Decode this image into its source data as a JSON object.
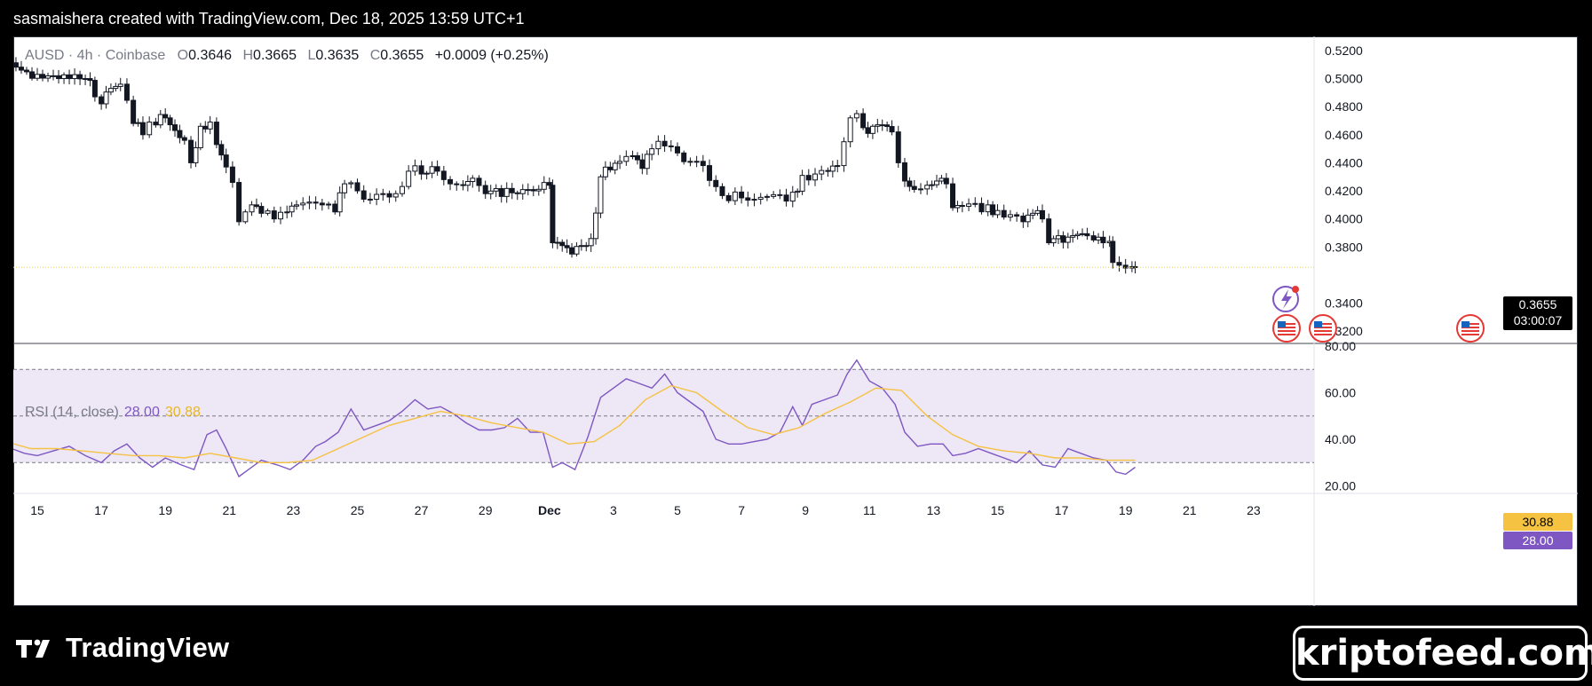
{
  "header": {
    "credit": "sasmaishera created with TradingView.com, Dec 18, 2025 13:59 UTC+1"
  },
  "legend": {
    "symbol": "AUSD · 4h · Coinbase",
    "open_label": "O",
    "open": "0.3646",
    "high_label": "H",
    "high": "0.3665",
    "low_label": "L",
    "low": "0.3635",
    "close_label": "C",
    "close": "0.3655",
    "change": "+0.0009 (+0.25%)"
  },
  "price_tag": {
    "price": "0.3655",
    "countdown": "03:00:07"
  },
  "rsi": {
    "label": "RSI (14, close)",
    "value": "28.00",
    "ma_value": "30.88"
  },
  "branding": {
    "logo_text": "TradingView",
    "watermark": "kriptofeed.com"
  },
  "colors": {
    "up": "#ffffff",
    "down": "#131722",
    "rsi_line": "#7e57c2",
    "rsi_ma": "#f5c242",
    "rsi_band": "#ede7f6",
    "price_line": "#e6d84a"
  },
  "chart_data": [
    {
      "type": "candlestick",
      "timeframe": "4h",
      "ylim": [
        0.31,
        0.525
      ],
      "y_ticks": [
        "0.5200",
        "0.5000",
        "0.4800",
        "0.4600",
        "0.4400",
        "0.4200",
        "0.4000",
        "0.3800",
        "0.3400",
        "0.3200"
      ],
      "x_ticks": [
        "15",
        "17",
        "19",
        "21",
        "23",
        "25",
        "27",
        "29",
        "Dec",
        "3",
        "5",
        "7",
        "9",
        "11",
        "13",
        "15",
        "17",
        "19",
        "21",
        "23"
      ],
      "last_price": 0.3655,
      "close_path": [
        [
          14.0,
          0.518
        ],
        [
          14.5,
          0.506
        ],
        [
          15.0,
          0.503
        ],
        [
          15.5,
          0.502
        ],
        [
          16.0,
          0.5
        ],
        [
          16.5,
          0.5
        ],
        [
          16.8,
          0.487
        ],
        [
          17.0,
          0.482
        ],
        [
          17.3,
          0.493
        ],
        [
          17.6,
          0.496
        ],
        [
          18.0,
          0.468
        ],
        [
          18.3,
          0.46
        ],
        [
          18.7,
          0.467
        ],
        [
          19.0,
          0.472
        ],
        [
          19.3,
          0.463
        ],
        [
          19.6,
          0.456
        ],
        [
          19.8,
          0.44
        ],
        [
          20.1,
          0.466
        ],
        [
          20.4,
          0.469
        ],
        [
          20.6,
          0.453
        ],
        [
          20.9,
          0.437
        ],
        [
          21.1,
          0.426
        ],
        [
          21.3,
          0.398
        ],
        [
          21.5,
          0.405
        ],
        [
          21.7,
          0.41
        ],
        [
          22.0,
          0.404
        ],
        [
          22.4,
          0.4
        ],
        [
          22.8,
          0.405
        ],
        [
          23.1,
          0.41
        ],
        [
          23.5,
          0.412
        ],
        [
          23.9,
          0.41
        ],
        [
          24.3,
          0.405
        ],
        [
          24.6,
          0.425
        ],
        [
          25.0,
          0.42
        ],
        [
          25.4,
          0.414
        ],
        [
          25.8,
          0.418
        ],
        [
          26.2,
          0.418
        ],
        [
          26.6,
          0.434
        ],
        [
          27.0,
          0.432
        ],
        [
          27.5,
          0.434
        ],
        [
          27.9,
          0.425
        ],
        [
          28.3,
          0.424
        ],
        [
          28.6,
          0.429
        ],
        [
          29.0,
          0.418
        ],
        [
          29.5,
          0.416
        ],
        [
          30.0,
          0.418
        ],
        [
          30.5,
          0.42
        ],
        [
          31.0,
          0.424
        ],
        [
          31.1,
          0.383
        ],
        [
          31.4,
          0.381
        ],
        [
          31.7,
          0.375
        ],
        [
          32.0,
          0.381
        ],
        [
          32.3,
          0.386
        ],
        [
          32.6,
          0.43
        ],
        [
          32.9,
          0.435
        ],
        [
          33.2,
          0.441
        ],
        [
          33.6,
          0.445
        ],
        [
          33.9,
          0.436
        ],
        [
          34.2,
          0.45
        ],
        [
          34.6,
          0.452
        ],
        [
          35.0,
          0.447
        ],
        [
          35.4,
          0.441
        ],
        [
          35.8,
          0.438
        ],
        [
          36.2,
          0.423
        ],
        [
          36.6,
          0.413
        ],
        [
          37.0,
          0.415
        ],
        [
          37.4,
          0.414
        ],
        [
          37.8,
          0.416
        ],
        [
          38.2,
          0.417
        ],
        [
          38.6,
          0.419
        ],
        [
          38.9,
          0.431
        ],
        [
          39.3,
          0.432
        ],
        [
          39.7,
          0.434
        ],
        [
          40.0,
          0.438
        ],
        [
          40.2,
          0.455
        ],
        [
          40.4,
          0.472
        ],
        [
          40.6,
          0.475
        ],
        [
          40.8,
          0.465
        ],
        [
          41.1,
          0.466
        ],
        [
          41.4,
          0.467
        ],
        [
          41.7,
          0.462
        ],
        [
          41.9,
          0.44
        ],
        [
          42.1,
          0.427
        ],
        [
          42.4,
          0.421
        ],
        [
          42.8,
          0.424
        ],
        [
          43.1,
          0.427
        ],
        [
          43.4,
          0.425
        ],
        [
          43.6,
          0.408
        ],
        [
          43.9,
          0.409
        ],
        [
          44.3,
          0.411
        ],
        [
          44.7,
          0.41
        ],
        [
          45.0,
          0.406
        ],
        [
          45.4,
          0.403
        ],
        [
          45.8,
          0.398
        ],
        [
          46.1,
          0.404
        ],
        [
          46.4,
          0.4
        ],
        [
          46.6,
          0.383
        ],
        [
          46.9,
          0.388
        ],
        [
          47.2,
          0.387
        ],
        [
          47.5,
          0.389
        ],
        [
          47.8,
          0.388
        ],
        [
          48.0,
          0.385
        ],
        [
          48.3,
          0.383
        ],
        [
          48.5,
          0.384
        ],
        [
          48.6,
          0.369
        ],
        [
          48.8,
          0.367
        ],
        [
          49.0,
          0.365
        ],
        [
          49.2,
          0.366
        ],
        [
          49.3,
          0.3655
        ]
      ]
    },
    {
      "type": "line",
      "title": "RSI (14, close)",
      "ylim": [
        16,
        80
      ],
      "y_ticks": [
        "80.00",
        "60.00",
        "40.00",
        "20.00"
      ],
      "bands": [
        70,
        50,
        30
      ],
      "series": [
        {
          "name": "RSI",
          "points": [
            [
              14.0,
              37
            ],
            [
              14.6,
              34
            ],
            [
              15.0,
              33
            ],
            [
              15.5,
              35
            ],
            [
              16.0,
              37
            ],
            [
              16.5,
              33
            ],
            [
              17.0,
              30
            ],
            [
              17.4,
              35
            ],
            [
              17.8,
              38
            ],
            [
              18.2,
              32
            ],
            [
              18.6,
              28
            ],
            [
              19.0,
              32
            ],
            [
              19.5,
              29
            ],
            [
              19.9,
              27
            ],
            [
              20.3,
              42
            ],
            [
              20.6,
              44
            ],
            [
              20.9,
              36
            ],
            [
              21.3,
              24
            ],
            [
              21.6,
              27
            ],
            [
              22.0,
              31
            ],
            [
              22.5,
              29
            ],
            [
              22.9,
              27
            ],
            [
              23.3,
              31
            ],
            [
              23.7,
              37
            ],
            [
              24.0,
              39
            ],
            [
              24.4,
              43
            ],
            [
              24.8,
              53
            ],
            [
              25.2,
              44
            ],
            [
              25.6,
              46
            ],
            [
              26.0,
              48
            ],
            [
              26.4,
              52
            ],
            [
              26.8,
              57
            ],
            [
              27.2,
              53
            ],
            [
              27.6,
              54
            ],
            [
              28.0,
              51
            ],
            [
              28.4,
              47
            ],
            [
              28.8,
              44
            ],
            [
              29.2,
              44
            ],
            [
              29.6,
              45
            ],
            [
              30.0,
              49
            ],
            [
              30.4,
              43
            ],
            [
              30.8,
              43
            ],
            [
              31.1,
              28
            ],
            [
              31.4,
              30
            ],
            [
              31.8,
              27
            ],
            [
              32.2,
              41
            ],
            [
              32.6,
              58
            ],
            [
              33.0,
              62
            ],
            [
              33.4,
              66
            ],
            [
              33.8,
              64
            ],
            [
              34.2,
              62
            ],
            [
              34.6,
              68
            ],
            [
              35.0,
              60
            ],
            [
              35.4,
              56
            ],
            [
              35.8,
              52
            ],
            [
              36.2,
              40
            ],
            [
              36.6,
              38
            ],
            [
              37.0,
              38
            ],
            [
              37.4,
              39
            ],
            [
              37.8,
              40
            ],
            [
              38.2,
              43
            ],
            [
              38.6,
              54
            ],
            [
              38.9,
              46
            ],
            [
              39.2,
              55
            ],
            [
              39.6,
              57
            ],
            [
              40.0,
              59
            ],
            [
              40.3,
              68
            ],
            [
              40.6,
              74
            ],
            [
              41.0,
              65
            ],
            [
              41.4,
              62
            ],
            [
              41.8,
              55
            ],
            [
              42.1,
              43
            ],
            [
              42.5,
              37
            ],
            [
              42.9,
              38
            ],
            [
              43.3,
              38
            ],
            [
              43.6,
              33
            ],
            [
              44.0,
              34
            ],
            [
              44.4,
              36
            ],
            [
              44.8,
              34
            ],
            [
              45.2,
              32
            ],
            [
              45.6,
              30
            ],
            [
              46.0,
              35
            ],
            [
              46.4,
              29
            ],
            [
              46.8,
              28
            ],
            [
              47.2,
              36
            ],
            [
              47.6,
              34
            ],
            [
              48.0,
              32
            ],
            [
              48.4,
              31
            ],
            [
              48.7,
              26
            ],
            [
              49.0,
              25
            ],
            [
              49.3,
              28
            ]
          ]
        },
        {
          "name": "RSI-based MA",
          "points": [
            [
              14.0,
              39
            ],
            [
              14.8,
              36
            ],
            [
              15.6,
              36
            ],
            [
              16.4,
              35
            ],
            [
              17.2,
              34
            ],
            [
              18.0,
              33
            ],
            [
              18.8,
              33
            ],
            [
              19.6,
              32
            ],
            [
              20.4,
              34
            ],
            [
              21.2,
              32
            ],
            [
              22.0,
              30
            ],
            [
              22.8,
              30
            ],
            [
              23.6,
              31
            ],
            [
              24.4,
              36
            ],
            [
              25.2,
              41
            ],
            [
              26.0,
              46
            ],
            [
              26.8,
              49
            ],
            [
              27.6,
              52
            ],
            [
              28.4,
              50
            ],
            [
              29.2,
              47
            ],
            [
              30.0,
              45
            ],
            [
              30.8,
              43
            ],
            [
              31.6,
              38
            ],
            [
              32.4,
              39
            ],
            [
              33.2,
              46
            ],
            [
              34.0,
              57
            ],
            [
              34.8,
              63
            ],
            [
              35.6,
              60
            ],
            [
              36.4,
              52
            ],
            [
              37.2,
              45
            ],
            [
              38.0,
              42
            ],
            [
              38.8,
              45
            ],
            [
              39.6,
              51
            ],
            [
              40.4,
              56
            ],
            [
              41.2,
              62
            ],
            [
              42.0,
              61
            ],
            [
              42.8,
              50
            ],
            [
              43.6,
              42
            ],
            [
              44.4,
              37
            ],
            [
              45.2,
              35
            ],
            [
              46.0,
              34
            ],
            [
              46.8,
              32
            ],
            [
              47.6,
              32
            ],
            [
              48.4,
              31
            ],
            [
              49.3,
              31
            ]
          ]
        }
      ]
    }
  ]
}
